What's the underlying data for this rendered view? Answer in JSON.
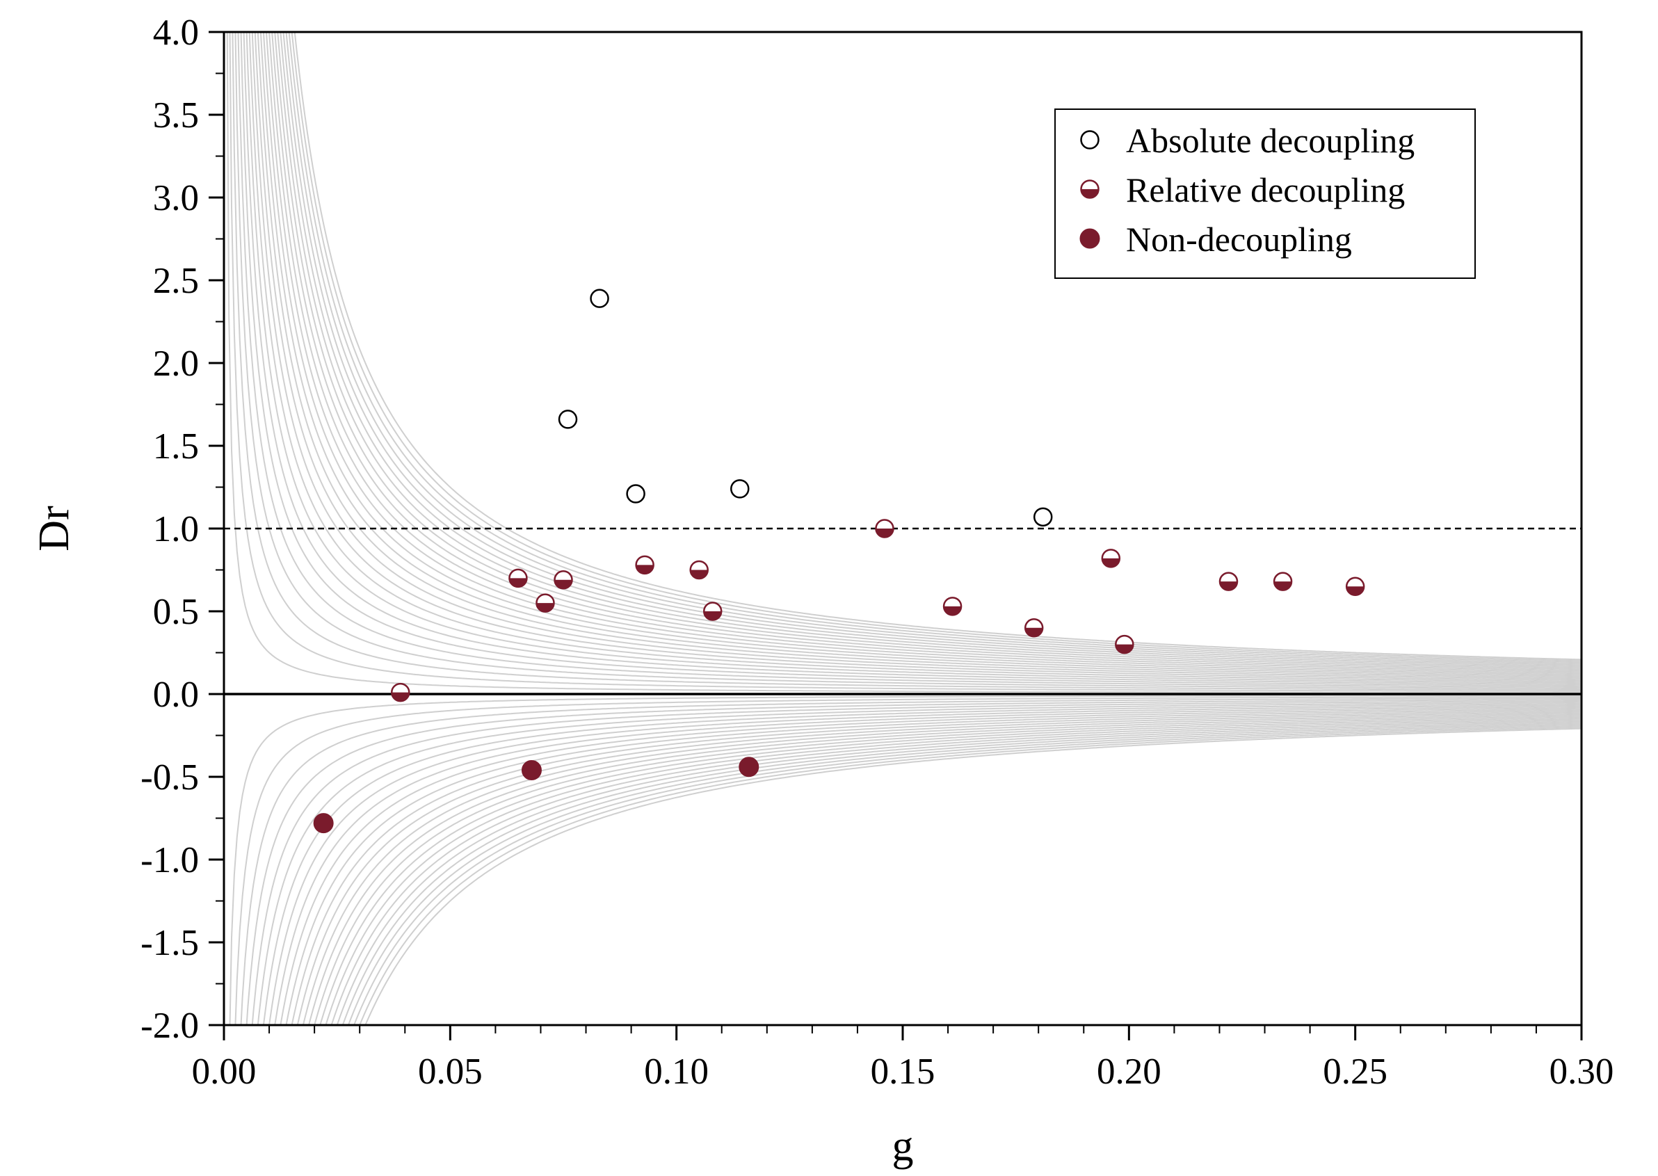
{
  "chart_data": {
    "type": "scatter",
    "title": "",
    "xlabel": "g",
    "ylabel": "Dr",
    "xlim": [
      0.0,
      0.3
    ],
    "ylim": [
      -2.0,
      4.0
    ],
    "x_ticks": [
      "0.00",
      "0.05",
      "0.10",
      "0.15",
      "0.20",
      "0.25",
      "0.30"
    ],
    "y_ticks": [
      "-2.0",
      "-1.5",
      "-1.0",
      "-0.5",
      "0.0",
      "0.5",
      "1.0",
      "1.5",
      "2.0",
      "2.5",
      "3.0",
      "3.5",
      "4.0"
    ],
    "grid": false,
    "reference_lines": [
      {
        "y": 1.0,
        "style": "dashed"
      },
      {
        "y": 0.0,
        "style": "solid"
      }
    ],
    "background_curves": {
      "description": "iso-lines Dr = k / g",
      "positive_k": [
        0.0025,
        0.005,
        0.0075,
        0.01,
        0.0125,
        0.015,
        0.0175,
        0.02,
        0.0225,
        0.025,
        0.0275,
        0.03,
        0.0325,
        0.035,
        0.0375,
        0.04,
        0.0425,
        0.045,
        0.0475,
        0.05,
        0.0525,
        0.055,
        0.0575,
        0.06,
        0.0625
      ],
      "negative_k": [
        -0.0025,
        -0.005,
        -0.0075,
        -0.01,
        -0.0125,
        -0.015,
        -0.0175,
        -0.02,
        -0.0225,
        -0.025,
        -0.0275,
        -0.03,
        -0.0325,
        -0.035,
        -0.0375,
        -0.04,
        -0.0425,
        -0.045,
        -0.0475,
        -0.05,
        -0.0525,
        -0.055,
        -0.0575,
        -0.06,
        -0.0625
      ]
    },
    "legend_position": "top-right",
    "series": [
      {
        "name": "Absolute decoupling",
        "marker": "open-circle",
        "points": [
          [
            0.083,
            2.39
          ],
          [
            0.076,
            1.66
          ],
          [
            0.091,
            1.21
          ],
          [
            0.114,
            1.24
          ],
          [
            0.181,
            1.07
          ]
        ]
      },
      {
        "name": "Relative decoupling",
        "marker": "half-filled-circle",
        "points": [
          [
            0.065,
            0.7
          ],
          [
            0.071,
            0.55
          ],
          [
            0.075,
            0.69
          ],
          [
            0.093,
            0.78
          ],
          [
            0.105,
            0.75
          ],
          [
            0.108,
            0.5
          ],
          [
            0.146,
            1.0
          ],
          [
            0.161,
            0.53
          ],
          [
            0.179,
            0.4
          ],
          [
            0.196,
            0.82
          ],
          [
            0.199,
            0.3
          ],
          [
            0.222,
            0.68
          ],
          [
            0.234,
            0.68
          ],
          [
            0.25,
            0.65
          ],
          [
            0.039,
            0.01
          ]
        ]
      },
      {
        "name": "Non-decoupling",
        "marker": "filled-circle",
        "points": [
          [
            0.022,
            -0.78
          ],
          [
            0.068,
            -0.46
          ],
          [
            0.116,
            -0.44
          ]
        ]
      }
    ],
    "colors": {
      "marker_fill": "#7a1b2c",
      "marker_edge": "#000000",
      "curves": "#cfcfcf",
      "axis": "#000000"
    }
  }
}
